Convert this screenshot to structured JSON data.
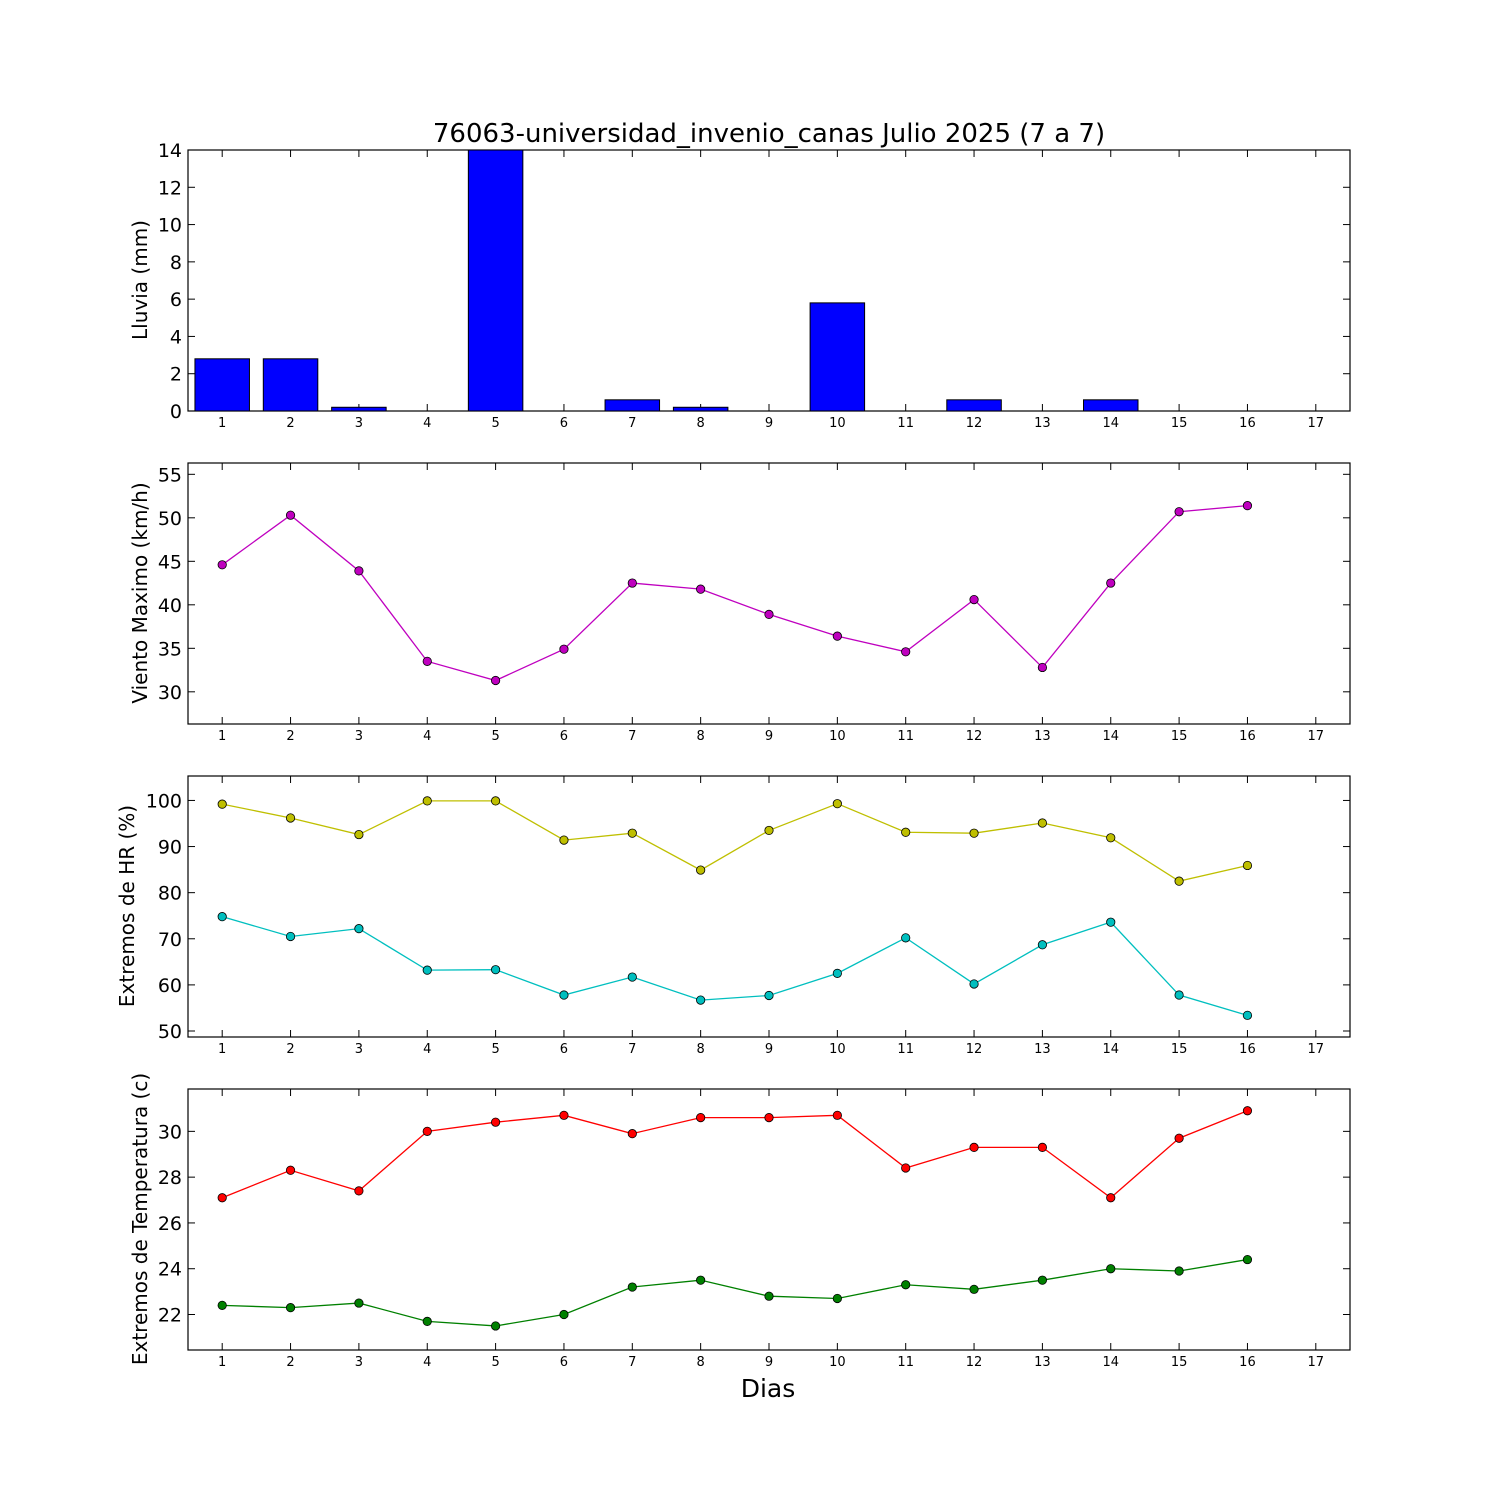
{
  "chart_data": [
    {
      "type": "bar",
      "title": "76063-universidad_invenio_canas Julio 2025  (7 a 7)",
      "ylabel": "Lluvia (mm)",
      "xlabel": "",
      "x": [
        1,
        2,
        3,
        4,
        5,
        6,
        7,
        8,
        9,
        10,
        11,
        12,
        13,
        14,
        15,
        16,
        17
      ],
      "values": [
        2.8,
        2.8,
        0.2,
        0,
        14,
        0,
        0.6,
        0.2,
        0,
        5.8,
        0,
        0.6,
        0,
        0.6,
        0,
        0,
        null
      ],
      "ylim": [
        0,
        14
      ],
      "yticks": [
        0,
        2,
        4,
        6,
        8,
        10,
        12,
        14
      ],
      "colors": {
        "bar": "#0000ff"
      }
    },
    {
      "type": "line",
      "ylabel": "Viento Maximo (km/h)",
      "xlabel": "",
      "x": [
        1,
        2,
        3,
        4,
        5,
        6,
        7,
        8,
        9,
        10,
        11,
        12,
        13,
        14,
        15,
        16
      ],
      "series": [
        {
          "values": [
            44.6,
            50.3,
            43.9,
            33.5,
            31.3,
            34.9,
            42.5,
            41.8,
            38.9,
            36.4,
            34.6,
            40.6,
            32.8,
            42.5,
            50.7,
            51.4
          ],
          "color": "#bf00bf"
        }
      ],
      "ylim": [
        26.3,
        56.3
      ],
      "yticks": [
        30,
        35,
        40,
        45,
        50,
        55
      ]
    },
    {
      "type": "line",
      "ylabel": "Extremos de HR (%)",
      "xlabel": "",
      "x": [
        1,
        2,
        3,
        4,
        5,
        6,
        7,
        8,
        9,
        10,
        11,
        12,
        13,
        14,
        15,
        16
      ],
      "series": [
        {
          "values": [
            99.2,
            96.2,
            92.6,
            99.9,
            99.9,
            91.4,
            92.9,
            84.9,
            93.5,
            99.3,
            93.1,
            92.9,
            95.1,
            91.9,
            82.5,
            85.9
          ],
          "color": "#bfbf00"
        },
        {
          "values": [
            74.8,
            70.5,
            72.2,
            63.2,
            63.3,
            57.8,
            61.7,
            56.7,
            57.7,
            62.5,
            70.2,
            60.2,
            68.7,
            73.6,
            57.8,
            53.4
          ],
          "color": "#00bfbf"
        }
      ],
      "ylim": [
        48.7,
        105.3
      ],
      "yticks": [
        50,
        60,
        70,
        80,
        90,
        100
      ]
    },
    {
      "type": "line",
      "ylabel": "Extremos de Temperatura (c)",
      "xlabel": "Dias",
      "x": [
        1,
        2,
        3,
        4,
        5,
        6,
        7,
        8,
        9,
        10,
        11,
        12,
        13,
        14,
        15,
        16
      ],
      "series": [
        {
          "values": [
            27.1,
            28.3,
            27.4,
            30.0,
            30.4,
            30.7,
            29.9,
            30.6,
            30.6,
            30.7,
            28.4,
            29.3,
            29.3,
            27.1,
            29.7,
            30.9
          ],
          "color": "#ff0000"
        },
        {
          "values": [
            22.4,
            22.3,
            22.5,
            21.7,
            21.5,
            22.0,
            23.2,
            23.5,
            22.8,
            22.7,
            23.3,
            23.1,
            23.5,
            24.0,
            23.9,
            24.4
          ],
          "color": "#008000"
        }
      ],
      "ylim": [
        20.45,
        31.85
      ],
      "yticks": [
        22,
        24,
        26,
        28,
        30
      ]
    }
  ],
  "xticks": [
    "1",
    "2",
    "3",
    "4",
    "5",
    "6",
    "7",
    "8",
    "9",
    "10",
    "11",
    "12",
    "13",
    "14",
    "15",
    "16",
    "17"
  ]
}
